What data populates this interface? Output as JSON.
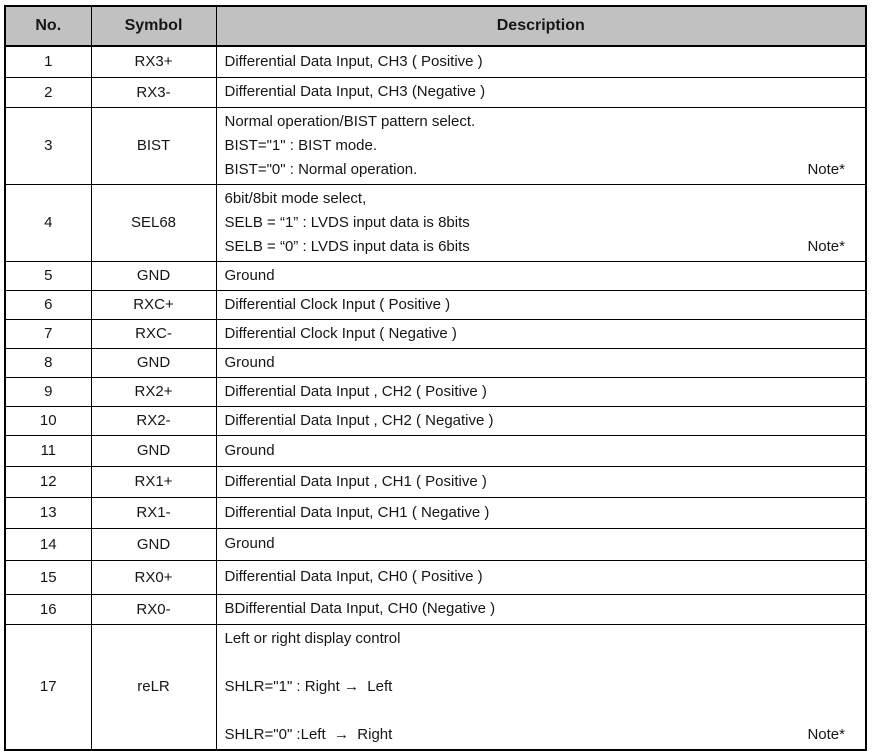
{
  "table": {
    "header_bg": "#c1c1c1",
    "border_color": "#000000",
    "header": {
      "no": "No.",
      "symbol": "Symbol",
      "description": "Description"
    },
    "rows": [
      {
        "no": "1",
        "symbol": "RX3+",
        "lines": [
          "Differential Data Input, CH3 ( Positive )"
        ],
        "note": ""
      },
      {
        "no": "2",
        "symbol": "RX3-",
        "lines": [
          "Differential Data Input, CH3 (Negative )"
        ],
        "note": ""
      },
      {
        "no": "3",
        "symbol": "BIST",
        "lines": [
          "Normal operation/BIST pattern select.",
          "BIST=\"1\" : BIST mode.",
          "BIST=\"0\" : Normal operation."
        ],
        "note": "Note*"
      },
      {
        "no": "4",
        "symbol": "SEL68",
        "lines": [
          "6bit/8bit mode select,",
          "SELB = “1” : LVDS input data is 8bits",
          "SELB = “0” : LVDS input data is 6bits"
        ],
        "note": "Note*"
      },
      {
        "no": "5",
        "symbol": "GND",
        "lines": [
          "Ground"
        ],
        "note": ""
      },
      {
        "no": "6",
        "symbol": "RXC+",
        "lines": [
          "Differential Clock Input ( Positive )"
        ],
        "note": ""
      },
      {
        "no": "7",
        "symbol": "RXC-",
        "lines": [
          "Differential Clock Input ( Negative )"
        ],
        "note": ""
      },
      {
        "no": "8",
        "symbol": "GND",
        "lines": [
          "Ground"
        ],
        "note": ""
      },
      {
        "no": "9",
        "symbol": "RX2+",
        "lines": [
          "Differential Data Input , CH2 ( Positive )"
        ],
        "note": ""
      },
      {
        "no": "10",
        "symbol": "RX2-",
        "lines": [
          "Differential Data Input , CH2 ( Negative )"
        ],
        "note": ""
      },
      {
        "no": "11",
        "symbol": "GND",
        "lines": [
          "Ground"
        ],
        "note": ""
      },
      {
        "no": "12",
        "symbol": "RX1+",
        "lines": [
          "Differential Data Input , CH1 ( Positive )"
        ],
        "note": ""
      },
      {
        "no": "13",
        "symbol": "RX1-",
        "lines": [
          "Differential Data Input, CH1 ( Negative )"
        ],
        "note": ""
      },
      {
        "no": "14",
        "symbol": "GND",
        "lines": [
          "Ground"
        ],
        "note": ""
      },
      {
        "no": "15",
        "symbol": "RX0+",
        "lines": [
          "Differential Data Input, CH0 ( Positive )"
        ],
        "note": ""
      },
      {
        "no": "16",
        "symbol": "RX0-",
        "lines": [
          "BDifferential Data Input, CH0 (Negative )"
        ],
        "note": ""
      },
      {
        "no": "17",
        "symbol": "reLR",
        "lines": [
          "Left or right display control",
          "",
          "SHLR=\"1\" : Right →  Left",
          "",
          "SHLR=\"0\" :Left  →  Right"
        ],
        "note": "Note*"
      }
    ]
  }
}
